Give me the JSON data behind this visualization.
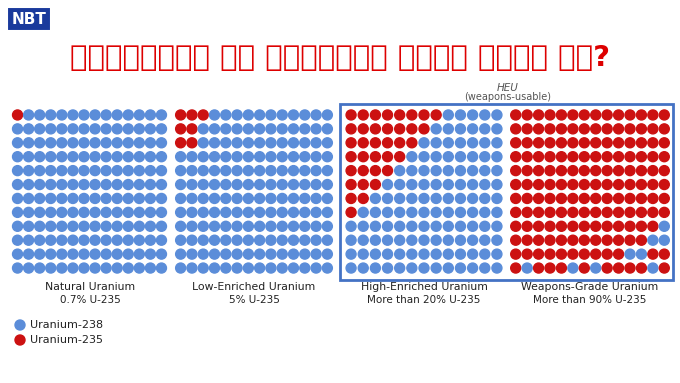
{
  "title_hindi": "यूरेनियम का संवर्धन कैसे होता है?",
  "nbt_label": "NBT",
  "background_color": "#ffffff",
  "title_color": "#dd0000",
  "nbt_bg": "#1a3a9c",
  "nbt_text_color": "#ffffff",
  "blue_dot_color": "#5b8dd9",
  "red_dot_color": "#cc1111",
  "heu_label": "HEU",
  "heu_sublabel": "(weapons-usable)",
  "legend_blue": "Uranium-238",
  "legend_red": "Uranium-235",
  "panels": [
    {
      "label": "Natural Uranium",
      "sublabel": "0.7% U-235",
      "cols": 14,
      "rows": 12,
      "red_grid": [
        [
          1,
          0,
          0,
          0,
          0,
          0,
          0,
          0,
          0,
          0,
          0,
          0,
          0,
          0
        ],
        [
          0,
          0,
          0,
          0,
          0,
          0,
          0,
          0,
          0,
          0,
          0,
          0,
          0,
          0
        ],
        [
          0,
          0,
          0,
          0,
          0,
          0,
          0,
          0,
          0,
          0,
          0,
          0,
          0,
          0
        ],
        [
          0,
          0,
          0,
          0,
          0,
          0,
          0,
          0,
          0,
          0,
          0,
          0,
          0,
          0
        ],
        [
          0,
          0,
          0,
          0,
          0,
          0,
          0,
          0,
          0,
          0,
          0,
          0,
          0,
          0
        ],
        [
          0,
          0,
          0,
          0,
          0,
          0,
          0,
          0,
          0,
          0,
          0,
          0,
          0,
          0
        ],
        [
          0,
          0,
          0,
          0,
          0,
          0,
          0,
          0,
          0,
          0,
          0,
          0,
          0,
          0
        ],
        [
          0,
          0,
          0,
          0,
          0,
          0,
          0,
          0,
          0,
          0,
          0,
          0,
          0,
          0
        ],
        [
          0,
          0,
          0,
          0,
          0,
          0,
          0,
          0,
          0,
          0,
          0,
          0,
          0,
          0
        ],
        [
          0,
          0,
          0,
          0,
          0,
          0,
          0,
          0,
          0,
          0,
          0,
          0,
          0,
          0
        ],
        [
          0,
          0,
          0,
          0,
          0,
          0,
          0,
          0,
          0,
          0,
          0,
          0,
          0,
          0
        ],
        [
          0,
          0,
          0,
          0,
          0,
          0,
          0,
          0,
          0,
          0,
          0,
          0,
          0,
          0
        ]
      ],
      "has_box": false
    },
    {
      "label": "Low-Enriched Uranium",
      "sublabel": "5% U-235",
      "cols": 14,
      "rows": 12,
      "red_grid": [
        [
          1,
          1,
          1,
          0,
          0,
          0,
          0,
          0,
          0,
          0,
          0,
          0,
          0,
          0
        ],
        [
          1,
          1,
          0,
          0,
          0,
          0,
          0,
          0,
          0,
          0,
          0,
          0,
          0,
          0
        ],
        [
          1,
          1,
          0,
          0,
          0,
          0,
          0,
          0,
          0,
          0,
          0,
          0,
          0,
          0
        ],
        [
          0,
          0,
          0,
          0,
          0,
          0,
          0,
          0,
          0,
          0,
          0,
          0,
          0,
          0
        ],
        [
          0,
          0,
          0,
          0,
          0,
          0,
          0,
          0,
          0,
          0,
          0,
          0,
          0,
          0
        ],
        [
          0,
          0,
          0,
          0,
          0,
          0,
          0,
          0,
          0,
          0,
          0,
          0,
          0,
          0
        ],
        [
          0,
          0,
          0,
          0,
          0,
          0,
          0,
          0,
          0,
          0,
          0,
          0,
          0,
          0
        ],
        [
          0,
          0,
          0,
          0,
          0,
          0,
          0,
          0,
          0,
          0,
          0,
          0,
          0,
          0
        ],
        [
          0,
          0,
          0,
          0,
          0,
          0,
          0,
          0,
          0,
          0,
          0,
          0,
          0,
          0
        ],
        [
          0,
          0,
          0,
          0,
          0,
          0,
          0,
          0,
          0,
          0,
          0,
          0,
          0,
          0
        ],
        [
          0,
          0,
          0,
          0,
          0,
          0,
          0,
          0,
          0,
          0,
          0,
          0,
          0,
          0
        ],
        [
          0,
          0,
          0,
          0,
          0,
          0,
          0,
          0,
          0,
          0,
          0,
          0,
          0,
          0
        ]
      ],
      "has_box": false
    },
    {
      "label": "High-Enriched Uranium",
      "sublabel": "More than 20% U-235",
      "cols": 13,
      "rows": 12,
      "red_grid": [
        [
          1,
          1,
          1,
          1,
          1,
          1,
          1,
          1,
          0,
          0,
          0,
          0,
          0
        ],
        [
          1,
          1,
          1,
          1,
          1,
          1,
          1,
          0,
          0,
          0,
          0,
          0,
          0
        ],
        [
          1,
          1,
          1,
          1,
          1,
          1,
          0,
          0,
          0,
          0,
          0,
          0,
          0
        ],
        [
          1,
          1,
          1,
          1,
          1,
          0,
          0,
          0,
          0,
          0,
          0,
          0,
          0
        ],
        [
          1,
          1,
          1,
          1,
          0,
          0,
          0,
          0,
          0,
          0,
          0,
          0,
          0
        ],
        [
          1,
          1,
          1,
          0,
          0,
          0,
          0,
          0,
          0,
          0,
          0,
          0,
          0
        ],
        [
          1,
          1,
          0,
          0,
          0,
          0,
          0,
          0,
          0,
          0,
          0,
          0,
          0
        ],
        [
          1,
          0,
          0,
          0,
          0,
          0,
          0,
          0,
          0,
          0,
          0,
          0,
          0
        ],
        [
          0,
          0,
          0,
          0,
          0,
          0,
          0,
          0,
          0,
          0,
          0,
          0,
          0
        ],
        [
          0,
          0,
          0,
          0,
          0,
          0,
          0,
          0,
          0,
          0,
          0,
          0,
          0
        ],
        [
          0,
          0,
          0,
          0,
          0,
          0,
          0,
          0,
          0,
          0,
          0,
          0,
          0
        ],
        [
          0,
          0,
          0,
          0,
          0,
          0,
          0,
          0,
          0,
          0,
          0,
          0,
          0
        ]
      ],
      "has_box": true
    },
    {
      "label": "Weapons-Grade Uranium",
      "sublabel": "More than 90% U-235",
      "cols": 14,
      "rows": 12,
      "red_grid": [
        [
          1,
          1,
          1,
          1,
          1,
          1,
          1,
          1,
          1,
          1,
          1,
          1,
          1,
          1
        ],
        [
          1,
          1,
          1,
          1,
          1,
          1,
          1,
          1,
          1,
          1,
          1,
          1,
          1,
          1
        ],
        [
          1,
          1,
          1,
          1,
          1,
          1,
          1,
          1,
          1,
          1,
          1,
          1,
          1,
          1
        ],
        [
          1,
          1,
          1,
          1,
          1,
          1,
          1,
          1,
          1,
          1,
          1,
          1,
          1,
          1
        ],
        [
          1,
          1,
          1,
          1,
          1,
          1,
          1,
          1,
          1,
          1,
          1,
          1,
          1,
          1
        ],
        [
          1,
          1,
          1,
          1,
          1,
          1,
          1,
          1,
          1,
          1,
          1,
          1,
          1,
          1
        ],
        [
          1,
          1,
          1,
          1,
          1,
          1,
          1,
          1,
          1,
          1,
          1,
          1,
          1,
          1
        ],
        [
          1,
          1,
          1,
          1,
          1,
          1,
          1,
          1,
          1,
          1,
          1,
          1,
          1,
          1
        ],
        [
          1,
          1,
          1,
          1,
          1,
          1,
          1,
          1,
          1,
          1,
          1,
          1,
          1,
          0
        ],
        [
          1,
          1,
          1,
          1,
          1,
          1,
          1,
          1,
          1,
          1,
          1,
          1,
          0,
          0
        ],
        [
          1,
          1,
          1,
          1,
          1,
          1,
          1,
          1,
          1,
          1,
          0,
          0,
          1,
          1
        ],
        [
          1,
          0,
          1,
          1,
          1,
          0,
          1,
          0,
          1,
          1,
          1,
          1,
          0,
          1
        ]
      ],
      "has_box": true
    }
  ]
}
